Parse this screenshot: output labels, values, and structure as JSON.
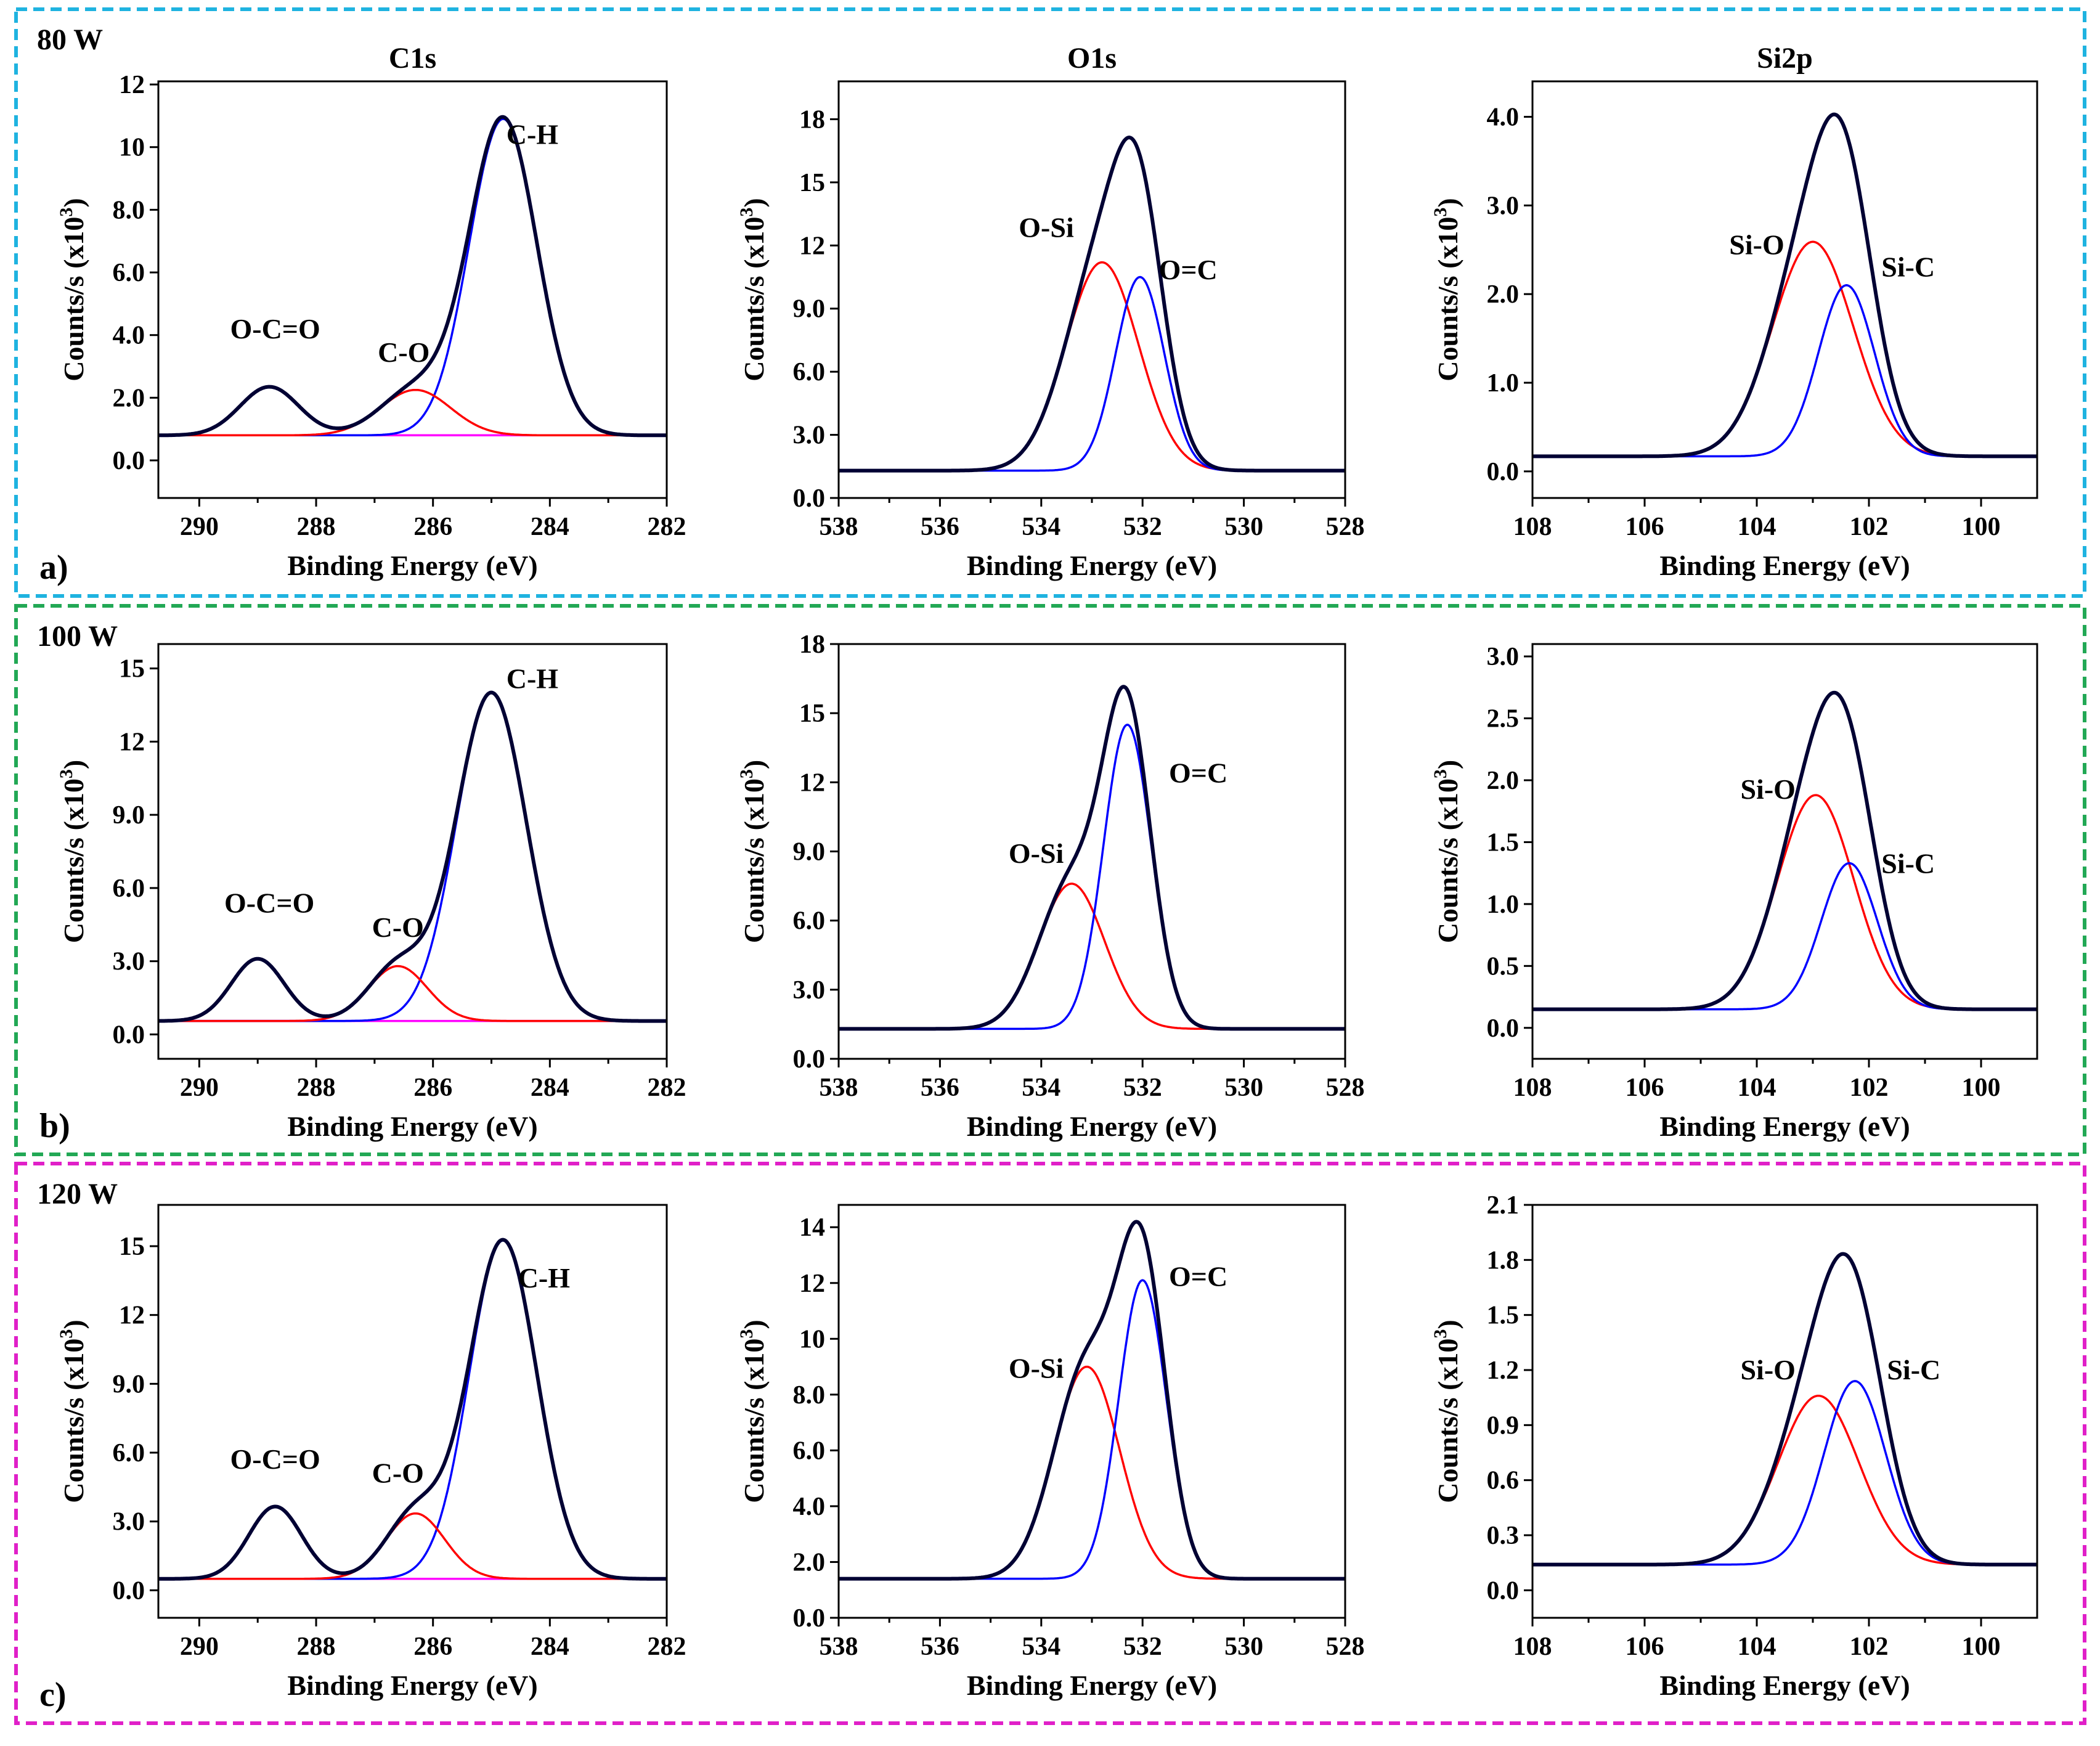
{
  "figure": {
    "panel_titles": [
      "C1s",
      "O1s",
      "Si2p"
    ],
    "colors": {
      "envelope": "#000033",
      "component_red": "#ff0000",
      "component_blue": "#0000ff",
      "baseline_c1s": "#ff00ff",
      "frame_row_a": "#1fb3e0",
      "frame_row_b": "#22a855",
      "frame_row_c": "#e020c8"
    },
    "rows": [
      {
        "letter": "a)",
        "power": "80 W"
      },
      {
        "letter": "b)",
        "power": "100 W"
      },
      {
        "letter": "c)",
        "power": "120 W"
      }
    ]
  },
  "chart_data": [
    {
      "type": "line",
      "row": 0,
      "col": 0,
      "title": "C1s",
      "xlabel": "Binding Energy (eV)",
      "ylabel_main": "Counts/s (x10",
      "ylabel_sup": "3",
      "ylabel_end": ")",
      "xlim": [
        290.7,
        282
      ],
      "ylim": [
        -1.2,
        12.1
      ],
      "xticks": [
        290,
        288,
        286,
        284,
        282
      ],
      "yticks": [
        0,
        2,
        4,
        6,
        8,
        10,
        12
      ],
      "ytick_labels": [
        "0.0",
        "2.0",
        "4.0",
        "6.0",
        "8.0",
        "10",
        "12"
      ],
      "baseline": 0.8,
      "components": [
        {
          "name": "C-H",
          "center": 284.8,
          "height": 10.1,
          "sigma": 0.58,
          "color": "blue"
        },
        {
          "name": "C-O",
          "center": 286.3,
          "height": 1.45,
          "sigma": 0.6,
          "color": "red"
        },
        {
          "name": "O-C=O",
          "center": 288.8,
          "height": 1.55,
          "sigma": 0.5,
          "color": "none"
        }
      ],
      "annotations": [
        {
          "text": "C-H",
          "x": 284.3,
          "y": 10.1
        },
        {
          "text": "C-O",
          "x": 286.5,
          "y": 3.15
        },
        {
          "text": "O-C=O",
          "x": 288.7,
          "y": 3.9
        }
      ]
    },
    {
      "type": "line",
      "row": 0,
      "col": 1,
      "title": "O1s",
      "xlabel": "Binding Energy (eV)",
      "ylabel_main": "Counts/s (x10",
      "ylabel_sup": "3",
      "ylabel_end": ")",
      "xlim": [
        538,
        528
      ],
      "ylim": [
        0,
        19.8
      ],
      "xticks": [
        538,
        536,
        534,
        532,
        530,
        528
      ],
      "yticks": [
        0,
        3,
        6,
        9,
        12,
        15,
        18
      ],
      "ytick_labels": [
        "0.0",
        "3.0",
        "6.0",
        "9.0",
        "12",
        "15",
        "18"
      ],
      "baseline": 1.3,
      "components": [
        {
          "name": "O-Si",
          "center": 532.8,
          "height": 9.9,
          "sigma": 0.72,
          "color": "red"
        },
        {
          "name": "O=C",
          "center": 532.05,
          "height": 9.2,
          "sigma": 0.48,
          "color": "blue"
        }
      ],
      "annotations": [
        {
          "text": "O-Si",
          "x": 533.9,
          "y": 12.4
        },
        {
          "text": "O=C",
          "x": 531.1,
          "y": 10.4
        }
      ]
    },
    {
      "type": "line",
      "row": 0,
      "col": 2,
      "title": "Si2p",
      "xlabel": "Binding Energy (eV)",
      "ylabel_main": "Counts/s (x10",
      "ylabel_sup": "3",
      "ylabel_end": ")",
      "xlim": [
        108,
        99
      ],
      "ylim": [
        -0.3,
        4.4
      ],
      "xticks": [
        108,
        106,
        104,
        102,
        100
      ],
      "yticks": [
        0,
        1,
        2,
        3,
        4
      ],
      "ytick_labels": [
        "0.0",
        "1.0",
        "2.0",
        "3.0",
        "4.0"
      ],
      "baseline": 0.17,
      "components": [
        {
          "name": "Si-O",
          "center": 103.0,
          "height": 2.42,
          "sigma": 0.72,
          "color": "red"
        },
        {
          "name": "Si-C",
          "center": 102.4,
          "height": 1.93,
          "sigma": 0.5,
          "color": "blue"
        }
      ],
      "annotations": [
        {
          "text": "Si-O",
          "x": 104.0,
          "y": 2.45
        },
        {
          "text": "Si-C",
          "x": 101.3,
          "y": 2.2
        }
      ]
    },
    {
      "type": "line",
      "row": 1,
      "col": 0,
      "title": "",
      "xlabel": "Binding Energy (eV)",
      "ylabel_main": "Counts/s (x10",
      "ylabel_sup": "3",
      "ylabel_end": ")",
      "xlim": [
        290.7,
        282
      ],
      "ylim": [
        -1.0,
        16.0
      ],
      "xticks": [
        290,
        288,
        286,
        284,
        282
      ],
      "yticks": [
        0,
        3,
        6,
        9,
        12,
        15
      ],
      "ytick_labels": [
        "0.0",
        "3.0",
        "6.0",
        "9.0",
        "12",
        "15"
      ],
      "baseline": 0.55,
      "components": [
        {
          "name": "C-H",
          "center": 285.0,
          "height": 13.45,
          "sigma": 0.6,
          "color": "blue"
        },
        {
          "name": "C-O",
          "center": 286.6,
          "height": 2.25,
          "sigma": 0.5,
          "color": "red"
        },
        {
          "name": "O-C=O",
          "center": 289.0,
          "height": 2.55,
          "sigma": 0.45,
          "color": "none"
        }
      ],
      "annotations": [
        {
          "text": "C-H",
          "x": 284.3,
          "y": 14.2
        },
        {
          "text": "C-O",
          "x": 286.6,
          "y": 4.0
        },
        {
          "text": "O-C=O",
          "x": 288.8,
          "y": 5.0
        }
      ]
    },
    {
      "type": "line",
      "row": 1,
      "col": 1,
      "title": "",
      "xlabel": "Binding Energy (eV)",
      "ylabel_main": "Counts/s (x10",
      "ylabel_sup": "3",
      "ylabel_end": ")",
      "xlim": [
        538,
        528
      ],
      "ylim": [
        0,
        18.0
      ],
      "xticks": [
        538,
        536,
        534,
        532,
        530,
        528
      ],
      "yticks": [
        0,
        3,
        6,
        9,
        12,
        15,
        18
      ],
      "ytick_labels": [
        "0.0",
        "3.0",
        "6.0",
        "9.0",
        "12",
        "15",
        "18"
      ],
      "baseline": 1.3,
      "components": [
        {
          "name": "O-Si",
          "center": 533.4,
          "height": 6.3,
          "sigma": 0.65,
          "color": "red"
        },
        {
          "name": "O=C",
          "center": 532.3,
          "height": 13.2,
          "sigma": 0.47,
          "color": "blue"
        }
      ],
      "annotations": [
        {
          "text": "O-Si",
          "x": 534.1,
          "y": 8.5
        },
        {
          "text": "O=C",
          "x": 530.9,
          "y": 12.0
        }
      ]
    },
    {
      "type": "line",
      "row": 1,
      "col": 2,
      "title": "",
      "xlabel": "Binding Energy (eV)",
      "ylabel_main": "Counts/s (x10",
      "ylabel_sup": "3",
      "ylabel_end": ")",
      "xlim": [
        108,
        99
      ],
      "ylim": [
        -0.25,
        3.1
      ],
      "xticks": [
        108,
        106,
        104,
        102,
        100
      ],
      "yticks": [
        0,
        0.5,
        1.0,
        1.5,
        2.0,
        2.5,
        3.0
      ],
      "ytick_labels": [
        "0.0",
        "0.5",
        "1.0",
        "1.5",
        "2.0",
        "2.5",
        "3.0"
      ],
      "baseline": 0.15,
      "components": [
        {
          "name": "Si-O",
          "center": 102.95,
          "height": 1.73,
          "sigma": 0.68,
          "color": "red"
        },
        {
          "name": "Si-C",
          "center": 102.35,
          "height": 1.18,
          "sigma": 0.5,
          "color": "blue"
        }
      ],
      "annotations": [
        {
          "text": "Si-O",
          "x": 103.8,
          "y": 1.85
        },
        {
          "text": "Si-C",
          "x": 101.3,
          "y": 1.25
        }
      ]
    },
    {
      "type": "line",
      "row": 2,
      "col": 0,
      "title": "",
      "xlabel": "Binding Energy (eV)",
      "ylabel_main": "Counts/s (x10",
      "ylabel_sup": "3",
      "ylabel_end": ")",
      "xlim": [
        290.7,
        282
      ],
      "ylim": [
        -1.2,
        16.8
      ],
      "xticks": [
        290,
        288,
        286,
        284,
        282
      ],
      "yticks": [
        0,
        3,
        6,
        9,
        12,
        15
      ],
      "ytick_labels": [
        "0.0",
        "3.0",
        "6.0",
        "9.0",
        "12",
        "15"
      ],
      "baseline": 0.5,
      "components": [
        {
          "name": "C-H",
          "center": 284.8,
          "height": 14.75,
          "sigma": 0.58,
          "color": "blue"
        },
        {
          "name": "C-O",
          "center": 286.3,
          "height": 2.85,
          "sigma": 0.5,
          "color": "red"
        },
        {
          "name": "O-C=O",
          "center": 288.7,
          "height": 3.15,
          "sigma": 0.45,
          "color": "none"
        }
      ],
      "annotations": [
        {
          "text": "C-H",
          "x": 284.1,
          "y": 13.2
        },
        {
          "text": "C-O",
          "x": 286.6,
          "y": 4.7
        },
        {
          "text": "O-C=O",
          "x": 288.7,
          "y": 5.3
        }
      ]
    },
    {
      "type": "line",
      "row": 2,
      "col": 1,
      "title": "",
      "xlabel": "Binding Energy (eV)",
      "ylabel_main": "Counts/s (x10",
      "ylabel_sup": "3",
      "ylabel_end": ")",
      "xlim": [
        538,
        528
      ],
      "ylim": [
        0,
        14.8
      ],
      "xticks": [
        538,
        536,
        534,
        532,
        530,
        528
      ],
      "yticks": [
        0,
        2,
        4,
        6,
        8,
        10,
        12,
        14
      ],
      "ytick_labels": [
        "0.0",
        "2.0",
        "4.0",
        "6.0",
        "8.0",
        "10",
        "12",
        "14"
      ],
      "baseline": 1.4,
      "components": [
        {
          "name": "O-Si",
          "center": 533.1,
          "height": 7.6,
          "sigma": 0.65,
          "color": "red"
        },
        {
          "name": "O=C",
          "center": 532.0,
          "height": 10.7,
          "sigma": 0.47,
          "color": "blue"
        }
      ],
      "annotations": [
        {
          "text": "O-Si",
          "x": 534.1,
          "y": 8.6
        },
        {
          "text": "O=C",
          "x": 530.9,
          "y": 11.9
        }
      ]
    },
    {
      "type": "line",
      "row": 2,
      "col": 2,
      "title": "",
      "xlabel": "Binding Energy (eV)",
      "ylabel_main": "Counts/s (x10",
      "ylabel_sup": "3",
      "ylabel_end": ")",
      "xlim": [
        108,
        99
      ],
      "ylim": [
        -0.15,
        2.1
      ],
      "xticks": [
        108,
        106,
        104,
        102,
        100
      ],
      "yticks": [
        0,
        0.3,
        0.6,
        0.9,
        1.2,
        1.5,
        1.8,
        2.1
      ],
      "ytick_labels": [
        "0.0",
        "0.3",
        "0.6",
        "0.9",
        "1.2",
        "1.5",
        "1.8",
        "2.1"
      ],
      "baseline": 0.14,
      "components": [
        {
          "name": "Si-O",
          "center": 102.9,
          "height": 0.92,
          "sigma": 0.72,
          "color": "red"
        },
        {
          "name": "Si-C",
          "center": 102.25,
          "height": 1.0,
          "sigma": 0.55,
          "color": "blue"
        }
      ],
      "annotations": [
        {
          "text": "Si-O",
          "x": 103.8,
          "y": 1.15
        },
        {
          "text": "Si-C",
          "x": 101.2,
          "y": 1.15
        }
      ]
    }
  ]
}
